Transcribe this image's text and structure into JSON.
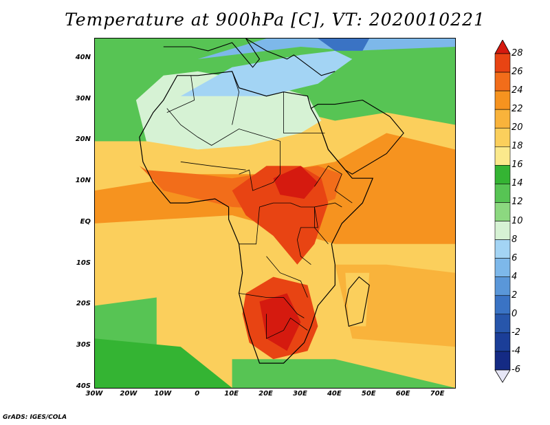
{
  "title": "Temperature at 900hPa [C], VT: 2020010221",
  "credit": "GrADS: IGES/COLA",
  "map": {
    "region": "Africa",
    "variable": "Temperature at 900hPa",
    "units": "C",
    "valid_time": "2020010221",
    "lon_range": [
      -30,
      75
    ],
    "lat_range": [
      -40,
      45
    ],
    "lon_ticks": [
      "30W",
      "20W",
      "10W",
      "0",
      "10E",
      "20E",
      "30E",
      "40E",
      "50E",
      "60E",
      "70E"
    ],
    "lat_ticks": [
      "40N",
      "30N",
      "20N",
      "10N",
      "EQ",
      "10S",
      "20S",
      "30S",
      "40S"
    ],
    "coastlines": true,
    "country_borders": true
  },
  "colorbar": {
    "levels": [
      "28",
      "26",
      "24",
      "22",
      "20",
      "18",
      "16",
      "14",
      "12",
      "10",
      "8",
      "6",
      "4",
      "2",
      "0",
      "-2",
      "-4",
      "-6"
    ],
    "colors": [
      "#d51a0f",
      "#e84413",
      "#f26d1a",
      "#f6931f",
      "#f9b33b",
      "#fbcf5c",
      "#fbe98c",
      "#34b433",
      "#57c454",
      "#8cd880",
      "#d6f2d4",
      "#a3d4f4",
      "#7db8ea",
      "#5a97d9",
      "#3a73c4",
      "#2756ab",
      "#1b3e98",
      "#142a84",
      "#0b176d"
    ]
  }
}
